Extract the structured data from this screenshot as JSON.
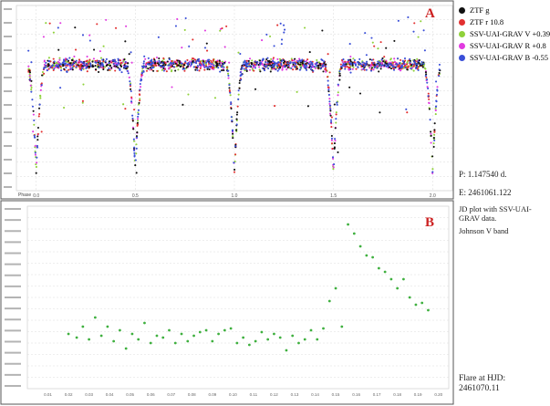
{
  "panel_a": {
    "letter": "A",
    "legend": [
      {
        "label": "ZTF g",
        "color": "#111111"
      },
      {
        "label": "ZTF r 10.8",
        "color": "#e23030"
      },
      {
        "label": "SSV-UAI-GRAV V +0.39",
        "color": "#8fd13a"
      },
      {
        "label": "SSV-UAI-GRAV R +0.8",
        "color": "#e13ae0"
      },
      {
        "label": "SSV-UAI-GRAV B -0.55",
        "color": "#3a4fd8"
      }
    ],
    "period_text": "P: 1.147540 d.",
    "epoch_text": "E: 2461061.122",
    "x_axis_label": "Phase",
    "x_ticks": [
      "0.0",
      "0.5",
      "1.0",
      "1.5",
      "2.0"
    ]
  },
  "panel_b": {
    "letter": "B",
    "note_text": "JD plot with SSV-UAI-GRAV data.",
    "band_text": "Johnson V band",
    "flare_text": "Flare at HJD: 2461070.11",
    "x_ticks": [
      "0.01",
      "0.02",
      "0.03",
      "0.04",
      "0.05",
      "0.06",
      "0.07",
      "0.08",
      "0.09",
      "0.10",
      "0.11",
      "0.12",
      "0.13",
      "0.14",
      "0.15",
      "0.16",
      "0.17",
      "0.18",
      "0.19",
      "0.20"
    ]
  },
  "chart_data": [
    {
      "type": "scatter",
      "title": "",
      "xlabel": "Phase",
      "ylabel": "",
      "xlim": [
        -0.1,
        2.1
      ],
      "note": "Phased eclipsing-binary light curve, two cycles shown; minima near phase 0, 0.5, 1.0, 1.5, 2.0.",
      "eclipse_phases": [
        0.0,
        0.5,
        1.0,
        1.5,
        2.0
      ],
      "series": [
        {
          "name": "ZTF g",
          "color": "#111111"
        },
        {
          "name": "ZTF r 10.8",
          "color": "#e23030"
        },
        {
          "name": "SSV-UAI-GRAV V +0.39",
          "color": "#8fd13a"
        },
        {
          "name": "SSV-UAI-GRAV R +0.8",
          "color": "#e13ae0"
        },
        {
          "name": "SSV-UAI-GRAV B -0.55",
          "color": "#3a4fd8"
        }
      ]
    },
    {
      "type": "scatter",
      "title": "",
      "xlabel": "",
      "ylabel": "",
      "xlim": [
        0.0,
        0.205
      ],
      "series": [
        {
          "name": "",
          "color": "#3fb03f",
          "x": [
            0.02,
            0.024,
            0.027,
            0.03,
            0.033,
            0.036,
            0.039,
            0.042,
            0.045,
            0.048,
            0.051,
            0.054,
            0.057,
            0.06,
            0.063,
            0.066,
            0.069,
            0.072,
            0.075,
            0.078,
            0.081,
            0.084,
            0.087,
            0.09,
            0.093,
            0.096,
            0.099,
            0.102,
            0.105,
            0.108,
            0.111,
            0.114,
            0.117,
            0.12,
            0.123,
            0.126,
            0.129,
            0.132,
            0.135,
            0.138,
            0.141,
            0.144,
            0.147,
            0.15,
            0.153,
            0.156,
            0.159,
            0.162,
            0.165,
            0.168,
            0.171,
            0.174,
            0.177,
            0.18,
            0.183,
            0.186,
            0.189,
            0.192,
            0.195
          ],
          "y": [
            0.7,
            0.72,
            0.66,
            0.73,
            0.61,
            0.71,
            0.66,
            0.74,
            0.68,
            0.78,
            0.7,
            0.73,
            0.64,
            0.75,
            0.71,
            0.72,
            0.68,
            0.75,
            0.7,
            0.74,
            0.71,
            0.69,
            0.68,
            0.74,
            0.7,
            0.68,
            0.67,
            0.75,
            0.72,
            0.76,
            0.74,
            0.69,
            0.73,
            0.7,
            0.72,
            0.79,
            0.71,
            0.75,
            0.73,
            0.68,
            0.73,
            0.67,
            0.52,
            0.45,
            0.66,
            0.1,
            0.15,
            0.22,
            0.27,
            0.28,
            0.34,
            0.36,
            0.4,
            0.45,
            0.4,
            0.5,
            0.54,
            0.53,
            0.57
          ]
        }
      ]
    }
  ]
}
